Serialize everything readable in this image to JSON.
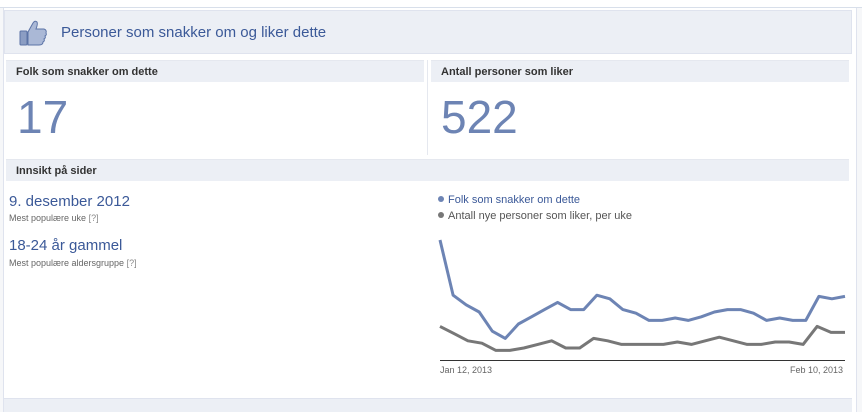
{
  "header": {
    "title": "Personer som snakker om og liker dette",
    "icon": "thumbs-up-icon"
  },
  "stats": {
    "talking": {
      "label": "Folk som snakker om dette",
      "value": "17"
    },
    "likes": {
      "label": "Antall personer som liker",
      "value": "522"
    }
  },
  "insights": {
    "heading": "Innsikt på sider",
    "top_week": {
      "value": "9. desember 2012",
      "label": "Mest populære uke",
      "help": "[?]"
    },
    "top_age": {
      "value": "18-24 år gammel",
      "label": "Mest populære aldersgruppe",
      "help": "[?]"
    }
  },
  "colors": {
    "accent": "#3b5998",
    "series_blue": "#6d84b4",
    "series_gray": "#777777"
  },
  "chart_data": {
    "type": "line",
    "x_ticks": [
      "Jan 12, 2013",
      "Feb 10, 2013"
    ],
    "series": [
      {
        "name": "Folk som snakker om dette",
        "color": "#6d84b4",
        "values": [
          100,
          54,
          46,
          40,
          24,
          18,
          30,
          36,
          42,
          48,
          42,
          42,
          54,
          51,
          42,
          39,
          33,
          33,
          35,
          33,
          36,
          40,
          42,
          42,
          39,
          33,
          35,
          33,
          33,
          53,
          51,
          53
        ]
      },
      {
        "name": "Antall nye personer som liker, per uke",
        "color": "#777777",
        "values": [
          28,
          22,
          16,
          14,
          8,
          8,
          10,
          13,
          16,
          10,
          10,
          18,
          16,
          13,
          13,
          13,
          13,
          15,
          13,
          16,
          19,
          16,
          13,
          13,
          15,
          15,
          13,
          28,
          23,
          23
        ]
      }
    ]
  }
}
